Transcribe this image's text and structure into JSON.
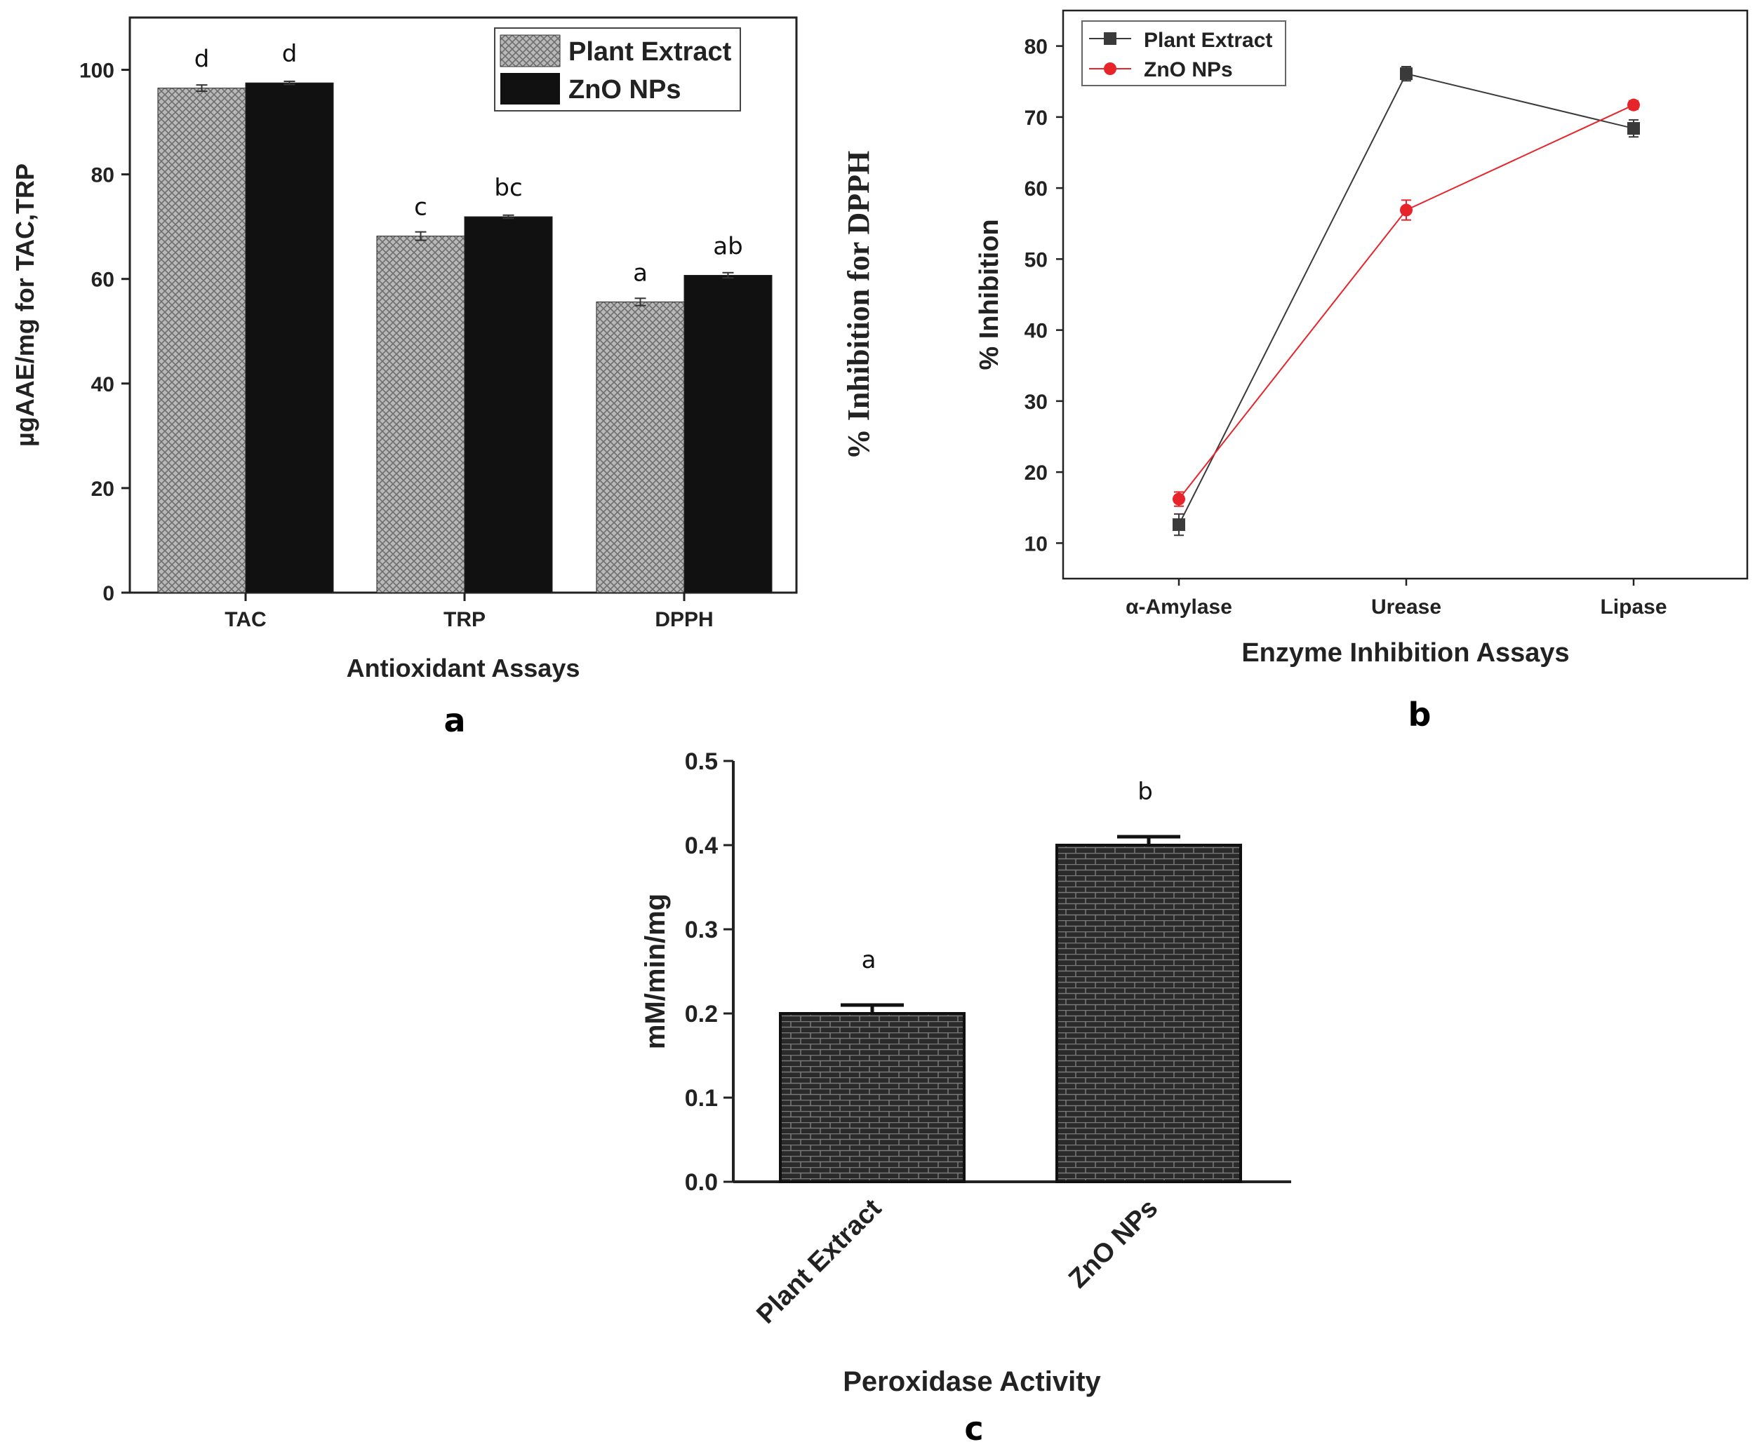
{
  "colors": {
    "ink": "#1a1a1a",
    "hatch": "#9a9a9a",
    "red": "#e8242b",
    "dark_marker": "#3a3a3a",
    "brick": "#2e2e2e"
  },
  "chart_data": [
    {
      "id": "a",
      "type": "bar",
      "panel_label": "a",
      "title": "",
      "categories": [
        "TAC",
        "TRP",
        "DPPH"
      ],
      "series": [
        {
          "name": "Plant Extract",
          "values": [
            96.5,
            68.2,
            55.6
          ],
          "errors": [
            0.6,
            0.8,
            0.7
          ],
          "labels": [
            "d",
            "c",
            "a"
          ],
          "pattern": "hatched"
        },
        {
          "name": "ZnO NPs",
          "values": [
            97.5,
            71.9,
            60.7
          ],
          "errors": [
            0.3,
            0.3,
            0.5
          ],
          "labels": [
            "d",
            "bc",
            "ab"
          ],
          "pattern": "solid"
        }
      ],
      "xlabel": "Antioxidant Assays",
      "ylabel": "µgAAE/mg for TAC,TRP",
      "ylabel_right": "% Inhibition  for DPPH",
      "ylim": [
        0,
        110
      ],
      "yticks": [
        0,
        20,
        40,
        60,
        80,
        100
      ],
      "legend": "top-right",
      "grid": false
    },
    {
      "id": "b",
      "type": "line",
      "panel_label": "b",
      "title": "",
      "categories": [
        "α-Amylase",
        "Urease",
        "Lipase"
      ],
      "series": [
        {
          "name": "Plant Extract",
          "values": [
            12.6,
            76.1,
            68.4
          ],
          "errors": [
            1.5,
            1.0,
            1.2
          ],
          "marker": "square",
          "color": "#3a3a3a"
        },
        {
          "name": "ZnO NPs",
          "values": [
            16.2,
            56.9,
            71.7
          ],
          "errors": [
            1.0,
            1.4,
            0.6
          ],
          "marker": "circle",
          "color": "#e8242b"
        }
      ],
      "xlabel": "Enzyme Inhibition Assays",
      "ylabel": "% Inhibition",
      "ylim": [
        5,
        85
      ],
      "yticks": [
        10,
        20,
        30,
        40,
        50,
        60,
        70,
        80
      ],
      "legend": "top-left",
      "grid": false
    },
    {
      "id": "c",
      "type": "bar",
      "panel_label": "c",
      "title": "",
      "categories": [
        "Plant Extract",
        "ZnO NPs"
      ],
      "series": [
        {
          "name": "",
          "values": [
            0.2,
            0.4
          ],
          "errors": [
            0.01,
            0.01
          ],
          "labels": [
            "a",
            "b"
          ],
          "pattern": "brick"
        }
      ],
      "xlabel": "Peroxidase Activity",
      "ylabel": "mM/min/mg",
      "ylim": [
        0,
        0.5
      ],
      "yticks": [
        "0.0",
        "0.1",
        "0.2",
        "0.3",
        "0.4",
        "0.5"
      ],
      "grid": false
    }
  ]
}
